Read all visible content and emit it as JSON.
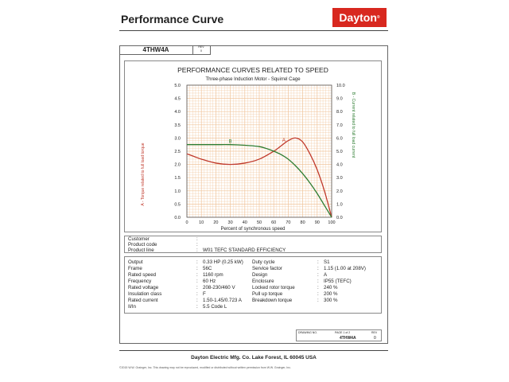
{
  "header": {
    "title": "Performance Curve",
    "brand": "Dayton"
  },
  "sheet": {
    "model": "4THW4A",
    "rev_label": "REV",
    "rev_value": "0"
  },
  "chart_data": {
    "type": "line",
    "title": "PERFORMANCE CURVES RELATED TO SPEED",
    "subtitle": "Three-phase Induction Motor - Squirrel Cage",
    "xlabel": "Percent of synchronous speed",
    "ylabel_left": "A - Torque related to full load torque",
    "ylabel_right": "B - Current related to full load current",
    "xlim": [
      0,
      100
    ],
    "ylim_left": [
      0,
      5.0
    ],
    "ylim_right": [
      0,
      10.0
    ],
    "x_ticks": [
      "0",
      "10",
      "20",
      "30",
      "40",
      "50",
      "60",
      "70",
      "80",
      "90",
      "100"
    ],
    "y_left_ticks": [
      "0.0",
      "0.5",
      "1.0",
      "1.5",
      "2.0",
      "2.5",
      "3.0",
      "3.5",
      "4.0",
      "4.5",
      "5.0"
    ],
    "y_right_ticks": [
      "0.0",
      "1.0",
      "2.0",
      "3.0",
      "4.0",
      "5.0",
      "6.0",
      "7.0",
      "8.0",
      "9.0",
      "10.0"
    ],
    "grid": true,
    "colors": {
      "A": "#c0392b",
      "B": "#2e7d32"
    },
    "series": [
      {
        "name": "A",
        "axis": "left",
        "x": [
          0,
          5,
          10,
          20,
          30,
          40,
          50,
          60,
          65,
          70,
          75,
          80,
          85,
          90,
          95,
          100
        ],
        "y": [
          2.4,
          2.3,
          2.2,
          2.05,
          2.0,
          2.05,
          2.2,
          2.5,
          2.7,
          2.9,
          3.0,
          2.85,
          2.4,
          1.8,
          1.0,
          0.0
        ]
      },
      {
        "name": "B",
        "axis": "right",
        "x": [
          0,
          10,
          20,
          30,
          40,
          50,
          55,
          60,
          65,
          70,
          75,
          80,
          85,
          90,
          95,
          100
        ],
        "y": [
          5.5,
          5.5,
          5.5,
          5.5,
          5.45,
          5.35,
          5.2,
          5.0,
          4.75,
          4.4,
          3.9,
          3.3,
          2.6,
          1.8,
          0.9,
          0.0
        ]
      }
    ]
  },
  "info": {
    "rows": [
      {
        "label": "Customer",
        "value": ""
      },
      {
        "label": "Product code",
        "value": ""
      },
      {
        "label": "Product line",
        "value": "W01 TEFC STANDARD  EFFICIENCY"
      }
    ]
  },
  "specs_left": [
    {
      "label": "Output",
      "value": "0.33 HP (0.25 kW)"
    },
    {
      "label": "Frame",
      "value": "56C"
    },
    {
      "label": "Rated speed",
      "value": "1160 rpm"
    },
    {
      "label": "Frequency",
      "value": "60 Hz"
    },
    {
      "label": "Rated voltage",
      "value": "208-230/460 V"
    },
    {
      "label": "Insulation class",
      "value": "F"
    },
    {
      "label": "Rated current",
      "value": "1.50-1.45/0.723 A"
    },
    {
      "label": "Il/In",
      "value": "5.5   Code L"
    }
  ],
  "specs_right": [
    {
      "label": "Duty cycle",
      "value": "S1"
    },
    {
      "label": "Service factor",
      "value": "1.15  (1.00 at 208V)"
    },
    {
      "label": "Design",
      "value": "A"
    },
    {
      "label": "Enclosure",
      "value": "IP55 (TEFC)"
    },
    {
      "label": "Locked rotor torque",
      "value": "240 %"
    },
    {
      "label": "Pull up torque",
      "value": "200 %"
    },
    {
      "label": "Breakdown torque",
      "value": "300 %"
    }
  ],
  "drawing": {
    "no_label": "DRAWING NO.",
    "page_label": "PAGE  1  of  2",
    "rev_label": "REV",
    "number": "4THW4A",
    "rev": "0"
  },
  "footer": {
    "company": "Dayton Electric Mfg. Co.  Lake Forest, IL  60045  USA",
    "copyright": "©2015 W.W. Grainger, Inc.  This drawing may not be reproduced, modified or distributed without written permission from W.W. Grainger, Inc."
  }
}
